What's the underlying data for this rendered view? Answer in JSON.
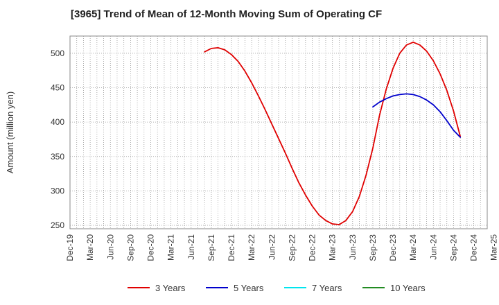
{
  "chart_data": {
    "type": "line",
    "title": "[3965]  Trend of Mean of 12-Month Moving Sum of Operating CF",
    "xlabel": "",
    "ylabel": "Amount (million yen)",
    "ylim": [
      245,
      525
    ],
    "yticks": [
      250,
      300,
      350,
      400,
      450,
      500
    ],
    "grid": true,
    "legend_position": "bottom",
    "x_tick_labels": [
      "Dec-19",
      "Mar-20",
      "Jun-20",
      "Sep-20",
      "Dec-20",
      "Mar-21",
      "Jun-21",
      "Sep-21",
      "Dec-21",
      "Mar-22",
      "Jun-22",
      "Sep-22",
      "Dec-22",
      "Mar-23",
      "Jun-23",
      "Sep-23",
      "Dec-23",
      "Mar-24",
      "Jun-24",
      "Sep-24",
      "Dec-24",
      "Mar-25"
    ],
    "x_months_start": "Dec-19",
    "x_months_count": 63,
    "series": [
      {
        "name": "3 Years",
        "color": "#e00000",
        "start_month_index": 20,
        "values": [
          502,
          507,
          508,
          505,
          498,
          488,
          474,
          457,
          438,
          418,
          397,
          376,
          355,
          333,
          312,
          294,
          278,
          265,
          257,
          252,
          251,
          257,
          270,
          292,
          323,
          362,
          410,
          448,
          478,
          500,
          512,
          516,
          512,
          503,
          489,
          470,
          446,
          416,
          379
        ]
      },
      {
        "name": "5 Years",
        "color": "#0000cc",
        "start_month_index": 45,
        "values": [
          422,
          429,
          434,
          438,
          440,
          441,
          440,
          437,
          432,
          425,
          415,
          402,
          388,
          378
        ]
      },
      {
        "name": "7 Years",
        "color": "#00e5ee",
        "start_month_index": 0,
        "values": []
      },
      {
        "name": "10 Years",
        "color": "#228b22",
        "start_month_index": 0,
        "values": []
      }
    ]
  }
}
